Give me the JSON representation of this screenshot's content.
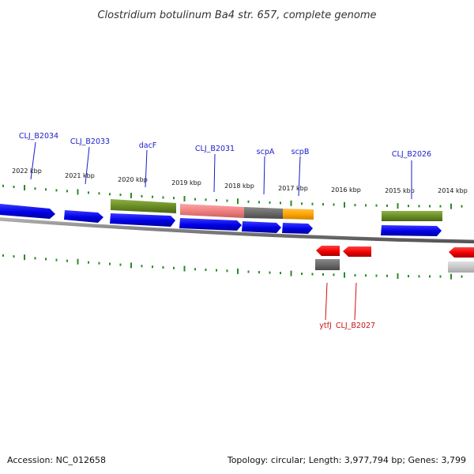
{
  "title": "Clostridium botulinum Ba4 str. 657, complete genome",
  "footer": {
    "accession": "Accession: NC_012658",
    "summary": "Topology: circular; Length: 3,977,794 bp; Genes: 3,799"
  },
  "ruler": {
    "ticks": [
      "2022 kbp",
      "2021 kbp",
      "2020 kbp",
      "2019 kbp",
      "2018 kbp",
      "2017 kbp",
      "2016 kbp",
      "2015 kbp",
      "2014 kbp"
    ]
  },
  "gene_labels": {
    "forward": [
      "CLJ_B2034",
      "CLJ_B2033",
      "dacF",
      "CLJ_B2031",
      "scpA",
      "scpB",
      "CLJ_B2026"
    ],
    "reverse": [
      "ytfJ",
      "CLJ_B2027"
    ]
  },
  "colors": {
    "forward_cds": "#0000ee",
    "reverse_cds": "#ee0000",
    "gene_olive": "#6b8e23",
    "gene_pink": "#f08080",
    "gene_gray": "#707070",
    "gene_orange": "#ffa500",
    "tick": "#2a8a2a",
    "backbone": "#808080",
    "forward_label": "#1a1acc",
    "reverse_label": "#cc1111"
  }
}
